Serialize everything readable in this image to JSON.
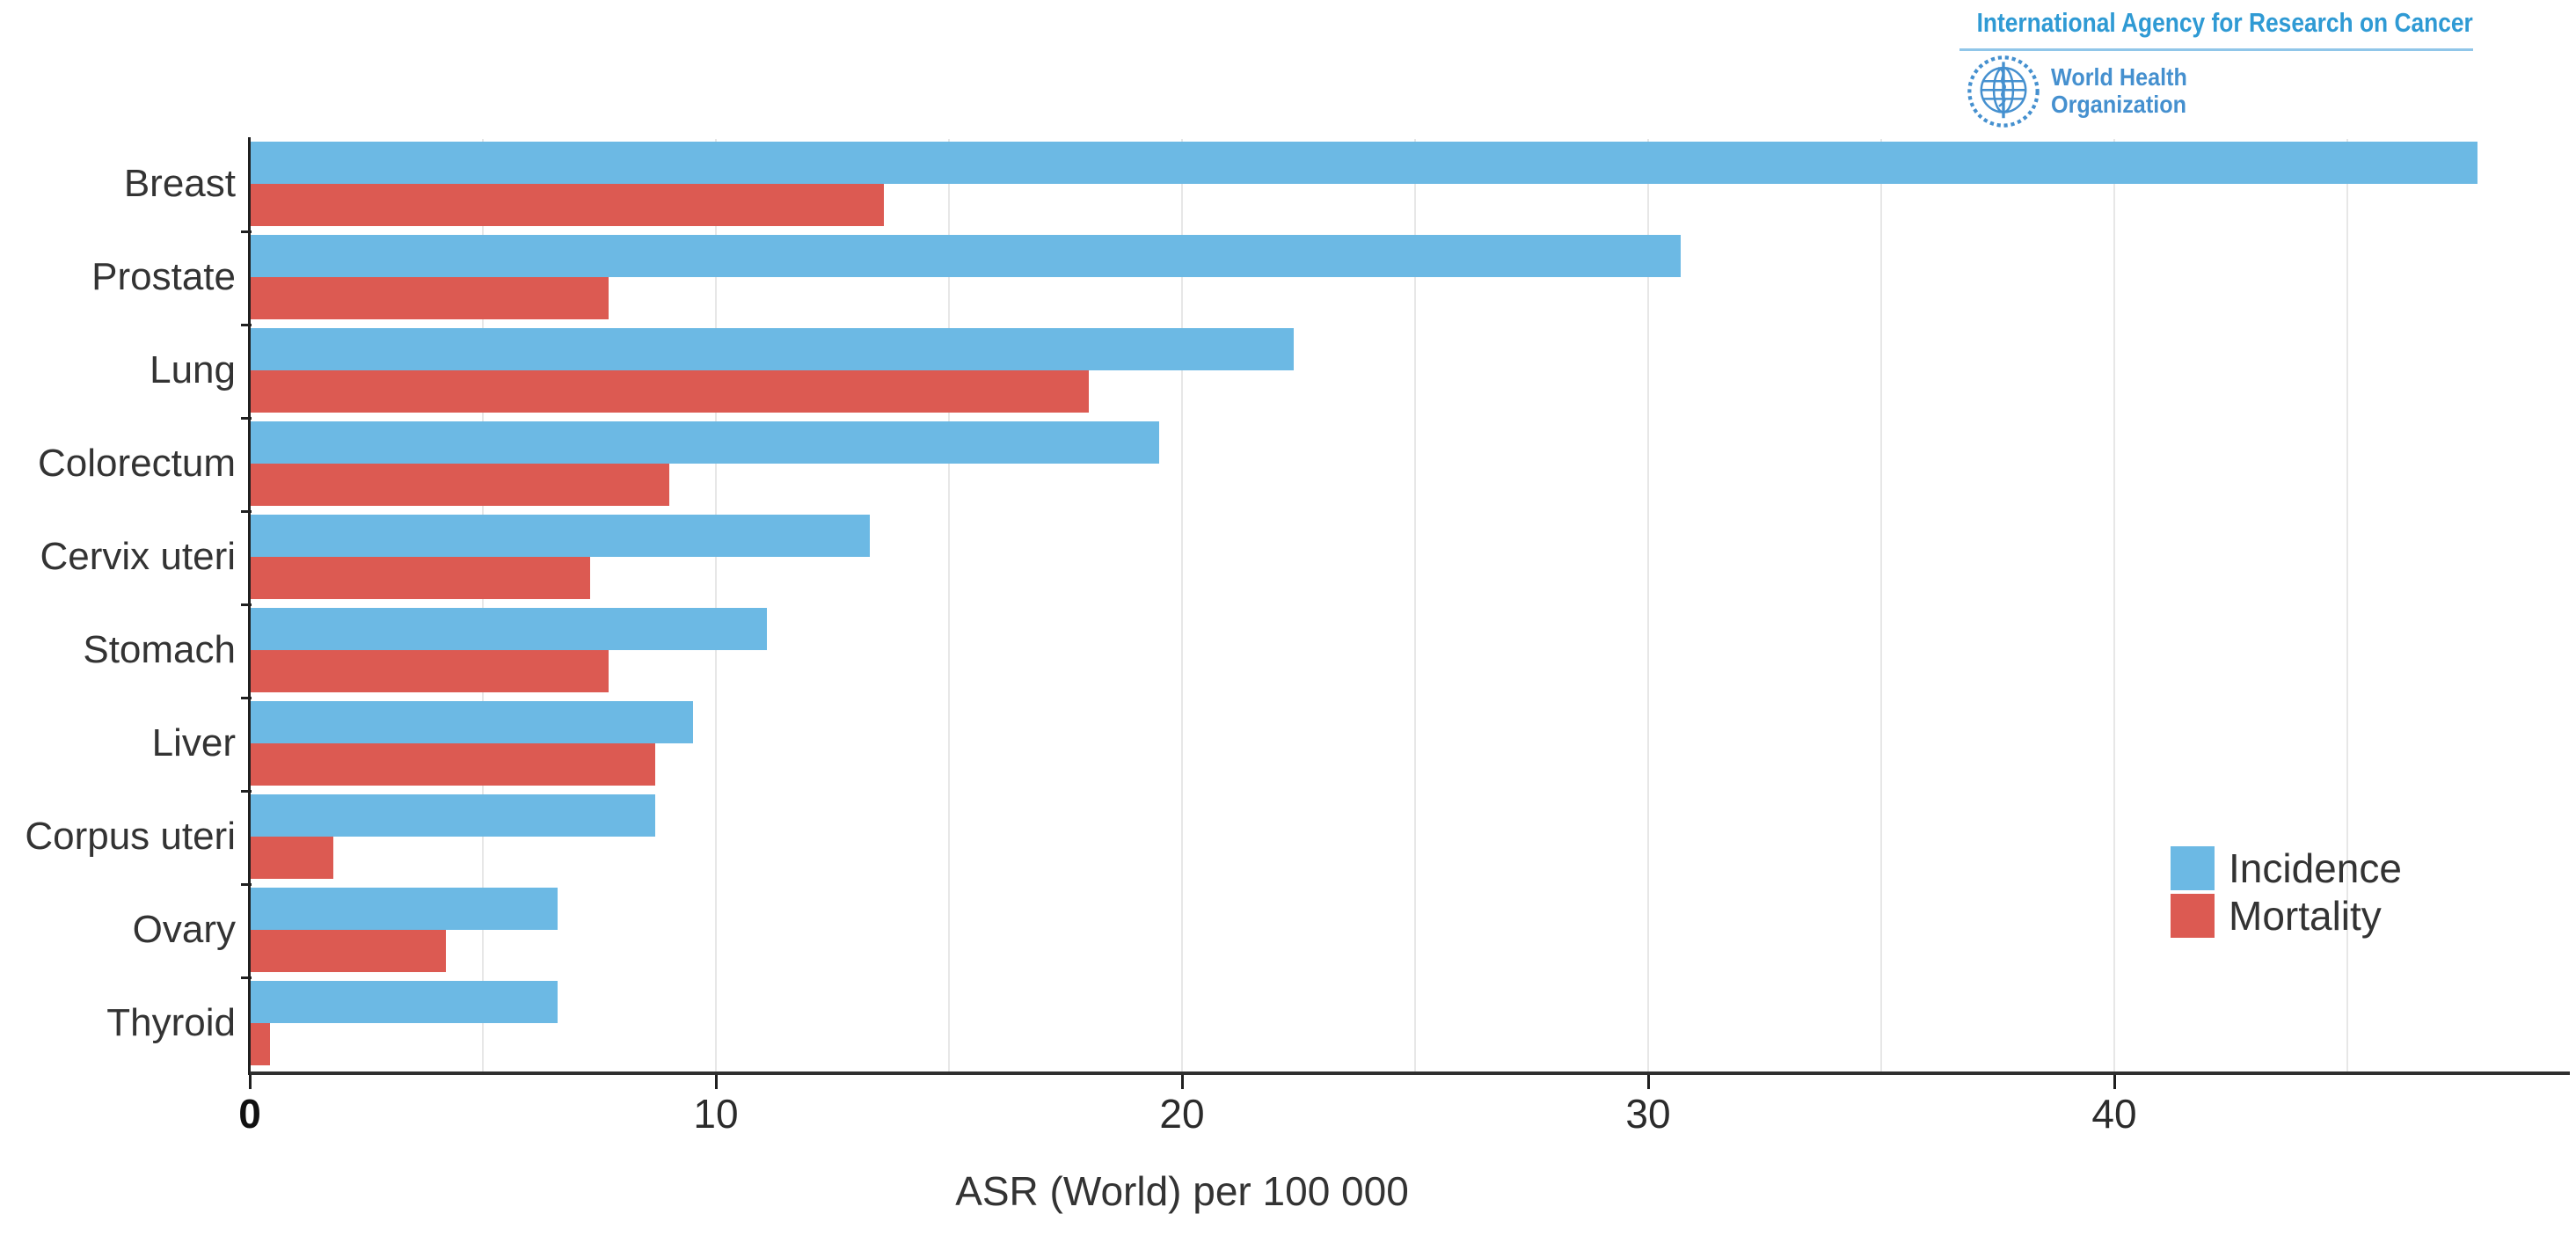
{
  "header": {
    "iarc_title": "International Agency for Research on Cancer",
    "who_name_line1": "World Health",
    "who_name_line2": "Organization",
    "iarc_blue": "#2f9ad4",
    "who_blue": "#4590cf"
  },
  "legend": {
    "items": [
      {
        "label": "Incidence",
        "color": "#6CB9E4"
      },
      {
        "label": "Mortality",
        "color": "#DC5A52"
      }
    ]
  },
  "chart_data": {
    "type": "bar",
    "orientation": "horizontal",
    "title": "",
    "xlabel": "ASR (World) per 100 000",
    "categories": [
      "Breast",
      "Prostate",
      "Lung",
      "Colorectum",
      "Cervix uteri",
      "Stomach",
      "Liver",
      "Corpus uteri",
      "Ovary",
      "Thyroid"
    ],
    "series": [
      {
        "name": "Incidence",
        "color": "#6CB9E4",
        "values": [
          47.8,
          30.7,
          22.4,
          19.5,
          13.3,
          11.1,
          9.5,
          8.7,
          6.6,
          6.6
        ]
      },
      {
        "name": "Mortality",
        "color": "#DC5A52",
        "values": [
          13.6,
          7.7,
          18.0,
          9.0,
          7.3,
          7.7,
          8.7,
          1.8,
          4.2,
          0.43
        ]
      }
    ],
    "xticks": [
      0,
      10,
      20,
      30,
      40
    ],
    "xlim": [
      0,
      49.6
    ],
    "gridline_interval": 5,
    "grid": true,
    "legend_position": "middle-right",
    "axis_color": "#2f2f2f",
    "gridline_color": "#e7e7e7"
  }
}
